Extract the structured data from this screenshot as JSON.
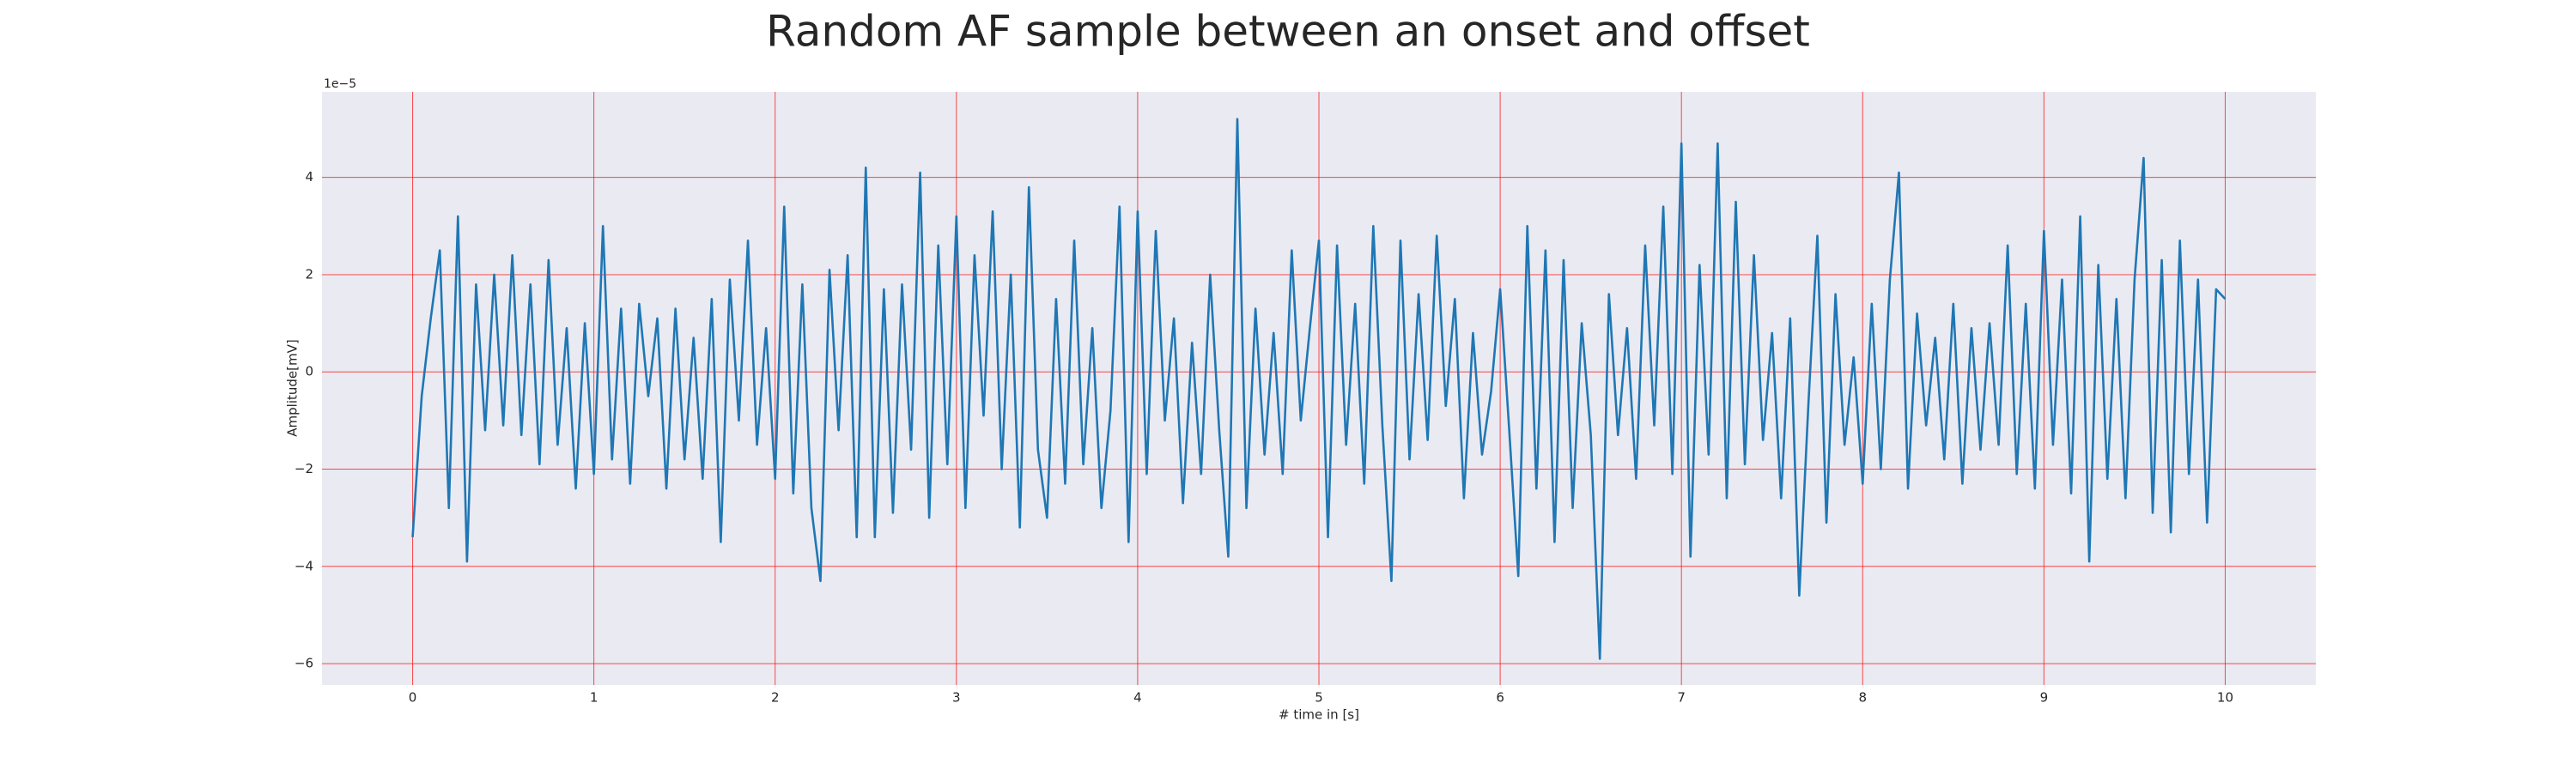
{
  "chart_data": {
    "type": "line",
    "title": "Random AF sample between an onset and offset",
    "xlabel": "# time in [s]",
    "ylabel": "Amplitude[mV]",
    "y_offset_label": "1e−5",
    "xlim": [
      -0.5,
      10.5
    ],
    "ylim": [
      -6.44,
      5.76
    ],
    "xticks": [
      0,
      1,
      2,
      3,
      4,
      5,
      6,
      7,
      8,
      9,
      10
    ],
    "yticks": [
      {
        "value": -6,
        "label": "−6"
      },
      {
        "value": -4,
        "label": "−4"
      },
      {
        "value": -2,
        "label": "−2"
      },
      0,
      2,
      4
    ],
    "grid": true,
    "grid_color": "#ff0000",
    "background": "#eaeaf2",
    "x": [
      0,
      0.05,
      0.1,
      0.15,
      0.2,
      0.25,
      0.3,
      0.35,
      0.4,
      0.45,
      0.5,
      0.55,
      0.6,
      0.65,
      0.7,
      0.75,
      0.8,
      0.85,
      0.9,
      0.95,
      1,
      1.05,
      1.1,
      1.15,
      1.2,
      1.25,
      1.3,
      1.35,
      1.4,
      1.45,
      1.5,
      1.55,
      1.6,
      1.65,
      1.7,
      1.75,
      1.8,
      1.85,
      1.9,
      1.95,
      2,
      2.05,
      2.1,
      2.15,
      2.2,
      2.25,
      2.3,
      2.35,
      2.4,
      2.45,
      2.5,
      2.55,
      2.6,
      2.65,
      2.7,
      2.75,
      2.8,
      2.85,
      2.9,
      2.95,
      3,
      3.05,
      3.1,
      3.15,
      3.2,
      3.25,
      3.3,
      3.35,
      3.4,
      3.45,
      3.5,
      3.55,
      3.6,
      3.65,
      3.7,
      3.75,
      3.8,
      3.85,
      3.9,
      3.95,
      4,
      4.05,
      4.1,
      4.15,
      4.2,
      4.25,
      4.3,
      4.35,
      4.4,
      4.45,
      4.5,
      4.55,
      4.6,
      4.65,
      4.7,
      4.75,
      4.8,
      4.85,
      4.9,
      4.95,
      5,
      5.05,
      5.1,
      5.15,
      5.2,
      5.25,
      5.3,
      5.35,
      5.4,
      5.45,
      5.5,
      5.55,
      5.6,
      5.65,
      5.7,
      5.75,
      5.8,
      5.85,
      5.9,
      5.95,
      6,
      6.05,
      6.1,
      6.15,
      6.2,
      6.25,
      6.3,
      6.35,
      6.4,
      6.45,
      6.5,
      6.55,
      6.6,
      6.65,
      6.7,
      6.75,
      6.8,
      6.85,
      6.9,
      6.95,
      7,
      7.05,
      7.1,
      7.15,
      7.2,
      7.25,
      7.3,
      7.35,
      7.4,
      7.45,
      7.5,
      7.55,
      7.6,
      7.65,
      7.7,
      7.75,
      7.8,
      7.85,
      7.9,
      7.95,
      8,
      8.05,
      8.1,
      8.15,
      8.2,
      8.25,
      8.3,
      8.35,
      8.4,
      8.45,
      8.5,
      8.55,
      8.6,
      8.65,
      8.7,
      8.75,
      8.8,
      8.85,
      8.9,
      8.95,
      9,
      9.05,
      9.1,
      9.15,
      9.2,
      9.25,
      9.3,
      9.35,
      9.4,
      9.45,
      9.5,
      9.55,
      9.6,
      9.65,
      9.7,
      9.75,
      9.8,
      9.85,
      9.9,
      9.95,
      10
    ],
    "series": [
      {
        "color": "#1f77b4",
        "values": [
          -3.4,
          -0.5,
          1.1,
          2.5,
          -2.8,
          3.2,
          -3.9,
          1.8,
          -1.2,
          2.0,
          -1.1,
          2.4,
          -1.3,
          1.8,
          -1.9,
          2.3,
          -1.5,
          0.9,
          -2.4,
          1.0,
          -2.1,
          3.0,
          -1.8,
          1.3,
          -2.3,
          1.4,
          -0.5,
          1.1,
          -2.4,
          1.3,
          -1.8,
          0.7,
          -2.2,
          1.5,
          -3.5,
          1.9,
          -1.0,
          2.7,
          -1.5,
          0.9,
          -2.2,
          3.4,
          -2.5,
          1.8,
          -2.8,
          -4.3,
          2.1,
          -1.2,
          2.4,
          -3.4,
          4.2,
          -3.4,
          1.7,
          -2.9,
          1.8,
          -1.6,
          4.1,
          -3.0,
          2.6,
          -1.9,
          3.2,
          -2.8,
          2.4,
          -0.9,
          3.3,
          -2.0,
          2.0,
          -3.2,
          3.8,
          -1.6,
          -3.0,
          1.5,
          -2.3,
          2.7,
          -1.9,
          0.9,
          -2.8,
          -0.8,
          3.4,
          -3.5,
          3.3,
          -2.1,
          2.9,
          -1.0,
          1.1,
          -2.7,
          0.6,
          -2.1,
          2.0,
          -1.2,
          -3.8,
          5.2,
          -2.8,
          1.3,
          -1.7,
          0.8,
          -2.1,
          2.5,
          -1.0,
          0.9,
          2.7,
          -3.4,
          2.6,
          -1.5,
          1.4,
          -2.3,
          3.0,
          -1.1,
          -4.3,
          2.7,
          -1.8,
          1.6,
          -1.4,
          2.8,
          -0.7,
          1.5,
          -2.6,
          0.8,
          -1.7,
          -0.4,
          1.7,
          -1.2,
          -4.2,
          3.0,
          -2.4,
          2.5,
          -3.5,
          2.3,
          -2.8,
          1.0,
          -1.3,
          -5.9,
          1.6,
          -1.3,
          0.9,
          -2.2,
          2.6,
          -1.1,
          3.4,
          -2.1,
          4.7,
          -3.8,
          2.2,
          -1.7,
          4.7,
          -2.6,
          3.5,
          -1.9,
          2.4,
          -1.4,
          0.8,
          -2.6,
          1.1,
          -4.6,
          -0.7,
          2.8,
          -3.1,
          1.6,
          -1.5,
          0.3,
          -2.3,
          1.4,
          -2.0,
          1.9,
          4.1,
          -2.4,
          1.2,
          -1.1,
          0.7,
          -1.8,
          1.4,
          -2.3,
          0.9,
          -1.6,
          1.0,
          -1.5,
          2.6,
          -2.1,
          1.4,
          -2.4,
          2.9,
          -1.5,
          1.9,
          -2.5,
          3.2,
          -3.9,
          2.2,
          -2.2,
          1.5,
          -2.6,
          1.9,
          4.4,
          -2.9,
          2.3,
          -3.3,
          2.7,
          -2.1,
          1.9,
          -3.1,
          1.7,
          1.5
        ]
      }
    ]
  }
}
